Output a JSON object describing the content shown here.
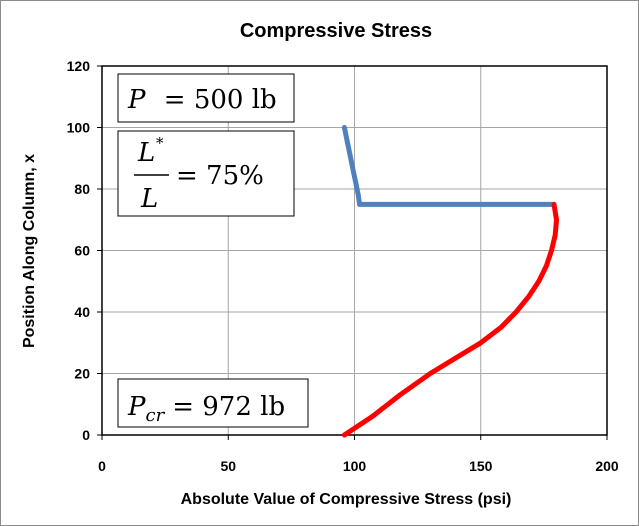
{
  "chart_data": {
    "type": "line",
    "title": "Compressive Stress",
    "xlabel": "Absolute Value of Compressive Stress (psi)",
    "ylabel": "Position Along Column, x",
    "xlim": [
      0,
      200
    ],
    "ylim": [
      0,
      120
    ],
    "xticks": [
      "0",
      "50",
      "100",
      "150",
      "200"
    ],
    "yticks": [
      "0",
      "20",
      "40",
      "60",
      "80",
      "100",
      "120"
    ],
    "grid": true,
    "legend": "none",
    "series": [
      {
        "color": "#4f81bd",
        "x": [
          96,
          97,
          98.5,
          99.5,
          100.5,
          101.5,
          102,
          179
        ],
        "y": [
          100,
          96,
          90,
          86,
          82,
          78,
          75,
          75
        ]
      },
      {
        "color": "#ff0000",
        "x": [
          179,
          180,
          179.5,
          178,
          176,
          173,
          169,
          164,
          158,
          150,
          140,
          130,
          118,
          107,
          96
        ],
        "y": [
          75,
          70,
          65,
          60,
          55,
          50,
          45,
          40,
          35,
          30,
          25,
          20,
          13,
          6,
          0
        ]
      }
    ],
    "annotations": {
      "load": {
        "symbol": "P",
        "equals": "= 500 lb"
      },
      "ratio": {
        "numerator": "L",
        "superscript": "*",
        "denominator": "L",
        "equals": "= 75%"
      },
      "critical": {
        "symbol": "P",
        "subscript": "cr",
        "equals": "= 972 lb"
      }
    }
  }
}
